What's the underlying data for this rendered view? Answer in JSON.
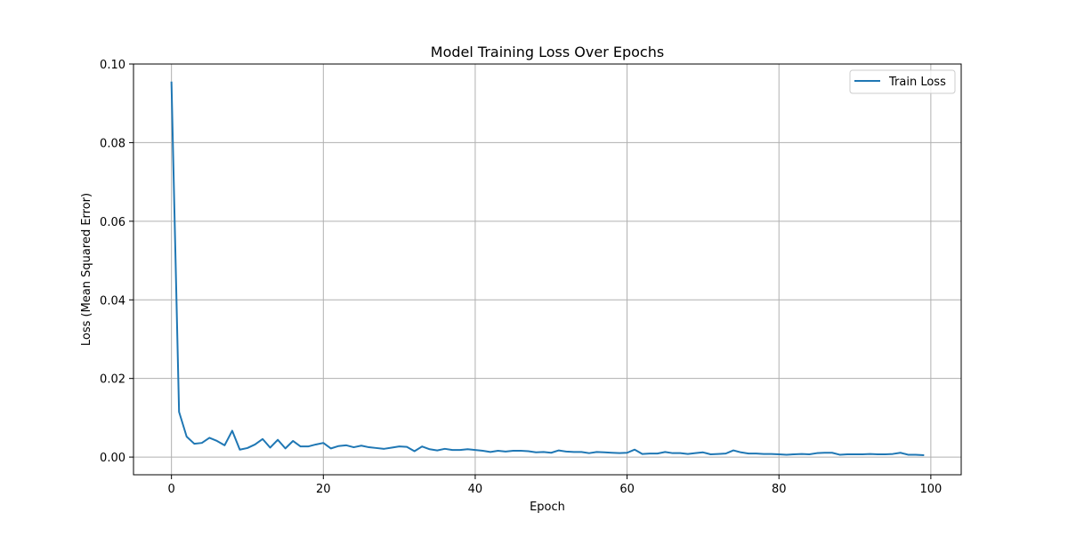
{
  "chart_data": {
    "type": "line",
    "title": "Model Training Loss Over Epochs",
    "xlabel": "Epoch",
    "ylabel": "Loss (Mean Squared Error)",
    "xlim": [
      -5,
      104
    ],
    "ylim": [
      -0.0045,
      0.1
    ],
    "xticks": [
      0,
      20,
      40,
      60,
      80,
      100
    ],
    "xtick_labels": [
      "0",
      "20",
      "40",
      "60",
      "80",
      "100"
    ],
    "yticks": [
      0.0,
      0.02,
      0.04,
      0.06,
      0.08,
      0.1
    ],
    "ytick_labels": [
      "0.00",
      "0.02",
      "0.04",
      "0.06",
      "0.08",
      "0.10"
    ],
    "grid": true,
    "legend_position": "top-right",
    "series": [
      {
        "name": "Train Loss",
        "color": "#1f77b4",
        "x": [
          0,
          1,
          2,
          3,
          4,
          5,
          6,
          7,
          8,
          9,
          10,
          11,
          12,
          13,
          14,
          15,
          16,
          17,
          18,
          19,
          20,
          21,
          22,
          23,
          24,
          25,
          26,
          27,
          28,
          29,
          30,
          31,
          32,
          33,
          34,
          35,
          36,
          37,
          38,
          39,
          40,
          41,
          42,
          43,
          44,
          45,
          46,
          47,
          48,
          49,
          50,
          51,
          52,
          53,
          54,
          55,
          56,
          57,
          58,
          59,
          60,
          61,
          62,
          63,
          64,
          65,
          66,
          67,
          68,
          69,
          70,
          71,
          72,
          73,
          74,
          75,
          76,
          77,
          78,
          79,
          80,
          81,
          82,
          83,
          84,
          85,
          86,
          87,
          88,
          89,
          90,
          91,
          92,
          93,
          94,
          95,
          96,
          97,
          98,
          99
        ],
        "values": [
          0.0953,
          0.0115,
          0.0052,
          0.0034,
          0.0036,
          0.0049,
          0.0041,
          0.003,
          0.0067,
          0.0019,
          0.0023,
          0.0032,
          0.0046,
          0.0024,
          0.0044,
          0.0022,
          0.0041,
          0.0027,
          0.0027,
          0.0032,
          0.0036,
          0.0022,
          0.0028,
          0.003,
          0.0025,
          0.0029,
          0.0025,
          0.0023,
          0.0021,
          0.0024,
          0.0027,
          0.0026,
          0.0015,
          0.0027,
          0.002,
          0.0017,
          0.0021,
          0.0018,
          0.0018,
          0.002,
          0.0018,
          0.0016,
          0.0013,
          0.0016,
          0.0014,
          0.0016,
          0.0016,
          0.0015,
          0.0012,
          0.0013,
          0.0011,
          0.0017,
          0.0014,
          0.0013,
          0.0013,
          0.001,
          0.0013,
          0.0012,
          0.0011,
          0.001,
          0.0011,
          0.0019,
          0.0008,
          0.0009,
          0.0009,
          0.0013,
          0.001,
          0.001,
          0.0008,
          0.001,
          0.0012,
          0.0007,
          0.0008,
          0.0009,
          0.0017,
          0.0012,
          0.0009,
          0.0009,
          0.0008,
          0.0008,
          0.0007,
          0.0006,
          0.0007,
          0.0008,
          0.0007,
          0.001,
          0.0011,
          0.0011,
          0.0006,
          0.0007,
          0.0007,
          0.0007,
          0.0008,
          0.0007,
          0.0007,
          0.0008,
          0.0011,
          0.0006,
          0.0006,
          0.0005
        ]
      }
    ]
  }
}
